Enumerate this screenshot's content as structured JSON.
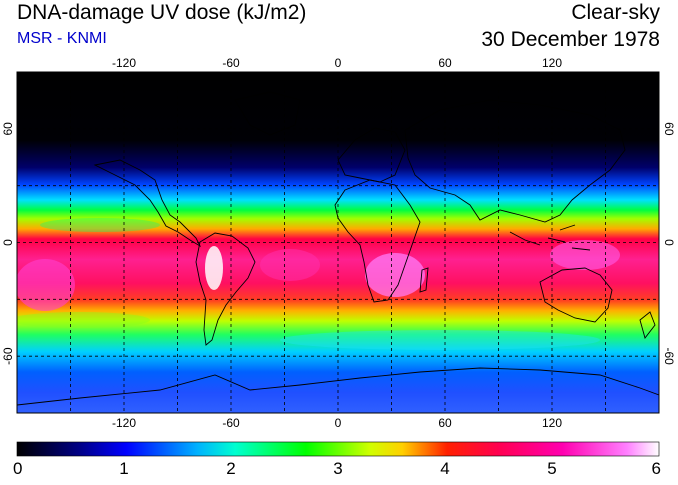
{
  "header": {
    "title": "DNA-damage UV dose (kJ/m2)",
    "subtitle": "MSR - KNMI",
    "condition": "Clear-sky",
    "date": "30 December 1978"
  },
  "map": {
    "lon_range": [
      -180,
      180
    ],
    "lat_range": [
      -90,
      90
    ],
    "lon_ticks": [
      -120,
      -60,
      0,
      60,
      120
    ],
    "lon_tick_labels": [
      "-120",
      "-60",
      "0",
      "60",
      "120"
    ],
    "lat_ticks": [
      60,
      0,
      -60
    ],
    "lat_tick_labels": [
      "60",
      "0",
      "-60"
    ],
    "gridlines": "dashed",
    "gridline_lons": [
      -150,
      -120,
      -90,
      -60,
      -30,
      0,
      30,
      60,
      90,
      120,
      150
    ],
    "gridline_lats": [
      60,
      30,
      0,
      -30,
      -60
    ],
    "field": "DNA-damage UV dose"
  },
  "colorbar": {
    "min": 0,
    "max": 6,
    "tick_values": [
      0,
      1,
      2,
      3,
      4,
      5,
      6
    ],
    "tick_labels": [
      "0",
      "1",
      "2",
      "3",
      "4",
      "5",
      "6"
    ],
    "colors": [
      "#000000",
      "#0000ff",
      "#00e0ff",
      "#00ff00",
      "#ffff00",
      "#ff0040",
      "#ff00c0",
      "#ffffff"
    ]
  }
}
